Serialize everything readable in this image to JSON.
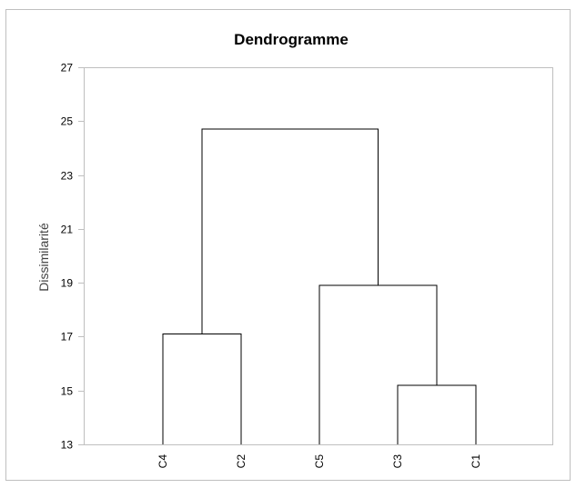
{
  "chart_data": {
    "type": "dendrogram",
    "title": "Dendrogramme",
    "xlabel": "",
    "ylabel": "Dissimilarité",
    "ylim": [
      13,
      27
    ],
    "yticks": [
      13,
      15,
      17,
      19,
      21,
      23,
      25,
      27
    ],
    "leaves": [
      "C4",
      "C2",
      "C5",
      "C3",
      "C1"
    ],
    "merges": [
      {
        "left": "C3",
        "right": "C1",
        "height": 15.2
      },
      {
        "left": "C4",
        "right": "C2",
        "height": 17.1
      },
      {
        "left": "C5",
        "right": "C3+C1",
        "height": 18.9
      },
      {
        "left": "C4+C2",
        "right": "C5+C3+C1",
        "height": 24.7
      }
    ],
    "grid": false,
    "legend": "none"
  }
}
